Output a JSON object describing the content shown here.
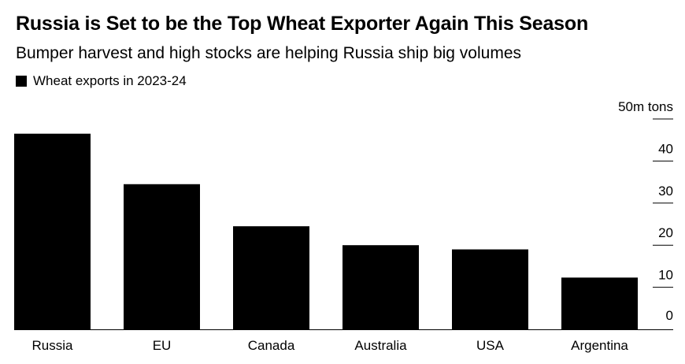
{
  "title": "Russia is Set to be the Top Wheat Exporter Again This Season",
  "subtitle": "Bumper harvest and high stocks are helping Russia ship big volumes",
  "legend": {
    "label": "Wheat exports in 2023-24",
    "color": "#000000"
  },
  "chart_data": {
    "type": "bar",
    "title": "Russia is Set to be the Top Wheat Exporter Again This Season",
    "subtitle": "Bumper harvest and high stocks are helping Russia ship big volumes",
    "categories": [
      "Russia",
      "EU",
      "Canada",
      "Australia",
      "USA",
      "Argentina"
    ],
    "series": [
      {
        "name": "Wheat exports in 2023-24",
        "values": [
          46.5,
          34.5,
          24.5,
          20,
          19,
          12.3
        ],
        "color": "#000000"
      }
    ],
    "ylim": [
      0,
      50
    ],
    "yticks": [
      0,
      10,
      20,
      30,
      40,
      50
    ],
    "ytick_labels": [
      "0",
      "10",
      "20",
      "30",
      "40",
      "50m tons"
    ],
    "xlabel": "",
    "ylabel": "",
    "y_axis_position": "right",
    "grid": false
  }
}
